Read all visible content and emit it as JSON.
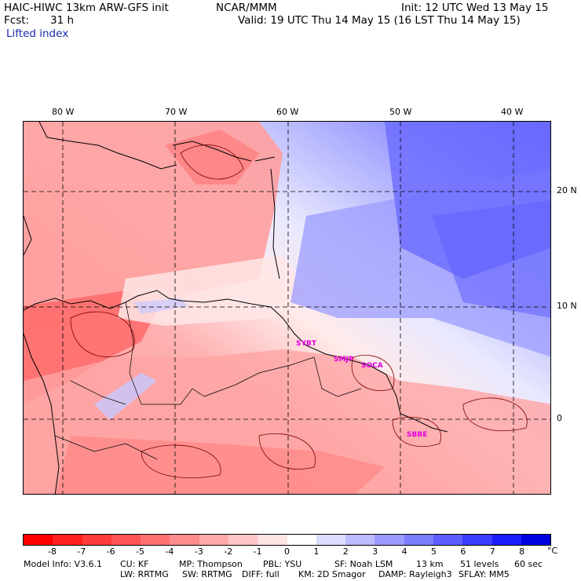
{
  "header": {
    "model_title": "HAIC-HIWC 13km ARW-GFS init",
    "org": "NCAR/MMM",
    "init": "Init: 12 UTC Wed 13 May 15",
    "fcst_label": "Fcst:",
    "fcst_value": "31 h",
    "valid": "Valid: 19 UTC Thu 14 May 15 (16 LST Thu 14 May 15)",
    "field_name": "Lifted index"
  },
  "axes": {
    "lon_labels": [
      "80 W",
      "70 W",
      "60 W",
      "50 W",
      "40 W"
    ],
    "lat_labels": [
      "20 N",
      "10 N",
      "0"
    ]
  },
  "stations": [
    "SYBT",
    "SMJP",
    "SOCA",
    "SBBE"
  ],
  "colorbar": {
    "labels": [
      "-8",
      "-7",
      "-6",
      "-5",
      "-4",
      "-3",
      "-2",
      "-1",
      "0",
      "1",
      "2",
      "3",
      "4",
      "5",
      "6",
      "7",
      "8"
    ],
    "unit": "°C",
    "colors": [
      "#ff0000",
      "#ff2020",
      "#ff3a3a",
      "#ff5555",
      "#ff7070",
      "#ff8c8c",
      "#ffaaaa",
      "#ffc6c6",
      "#ffe4e4",
      "#ffffff",
      "#dcdcff",
      "#bcbcff",
      "#9c9cff",
      "#7c7cff",
      "#5c5cff",
      "#3c3cff",
      "#1c1cf8",
      "#0000e0"
    ]
  },
  "footer": {
    "model_info": "Model Info: V3.6.1",
    "cu": "CU: KF",
    "mp": "MP: Thompson",
    "pbl": "PBL: YSU",
    "sf": "SF: Noah LSM",
    "res": "13 km",
    "levels": "51 levels",
    "dt": "60 sec",
    "lw": "LW: RRTMG",
    "sw": "SW: RRTMG",
    "diff": "DIFF: full",
    "km": "KM: 2D Smagor",
    "damp": "DAMP: Rayleigh3",
    "sflay": "SFLAY: MM5"
  }
}
